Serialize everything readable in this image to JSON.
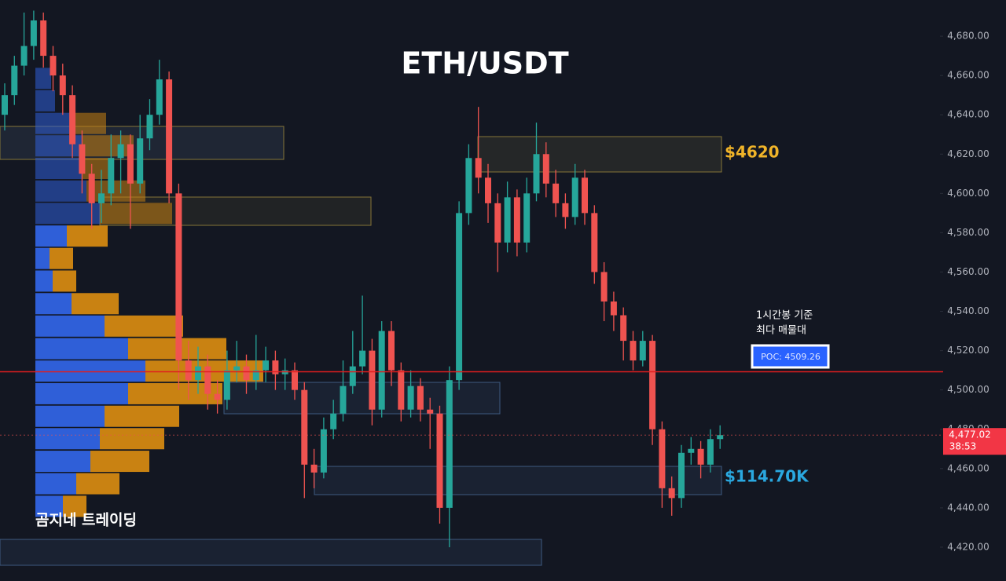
{
  "chart_data": {
    "type": "candlestick",
    "title": "ETH/USDT",
    "ylim": [
      4402.8,
      4698.4
    ],
    "yticks": [
      {
        "value": 4420,
        "label": "4,420.00"
      },
      {
        "value": 4440,
        "label": "4,440.00"
      },
      {
        "value": 4460,
        "label": "4,460.00"
      },
      {
        "value": 4480,
        "label": "4,480.00"
      },
      {
        "value": 4500,
        "label": "4,500.00"
      },
      {
        "value": 4520,
        "label": "4,520.00"
      },
      {
        "value": 4540,
        "label": "4,540.00"
      },
      {
        "value": 4560,
        "label": "4,560.00"
      },
      {
        "value": 4580,
        "label": "4,580.00"
      },
      {
        "value": 4600,
        "label": "4,600.00"
      },
      {
        "value": 4620,
        "label": "4,620.00"
      },
      {
        "value": 4640,
        "label": "4,640.00"
      },
      {
        "value": 4660,
        "label": "4,660.00"
      },
      {
        "value": 4680,
        "label": "4,680.00"
      }
    ],
    "grid": false,
    "up_color": "#26a69a",
    "down_color": "#ef5350",
    "open": [
      4640,
      4650,
      4665,
      4675,
      4688,
      4670,
      4660,
      4650,
      4625,
      4610,
      4595,
      4600,
      4618,
      4625,
      4605,
      4628,
      4640,
      4658,
      4600,
      4515,
      4505,
      4512,
      4498,
      4495,
      4510,
      4512,
      4505,
      4510,
      4515,
      4508,
      4510,
      4500,
      4462,
      4458,
      4480,
      4488,
      4502,
      4512,
      4520,
      4490,
      4530,
      4510,
      4490,
      4502,
      4490,
      4488,
      4440,
      4505,
      4590,
      4618,
      4608,
      4595,
      4575,
      4598,
      4575,
      4600,
      4620,
      4605,
      4595,
      4588,
      4608,
      4590,
      4560,
      4545,
      4538,
      4525,
      4515,
      4525,
      4480,
      4450,
      4445,
      4468,
      4470,
      4462,
      4475
    ],
    "high": [
      4656,
      4670,
      4692,
      4693,
      4692,
      4675,
      4666,
      4655,
      4632,
      4615,
      4612,
      4630,
      4632,
      4630,
      4640,
      4648,
      4668,
      4662,
      4605,
      4525,
      4522,
      4518,
      4505,
      4520,
      4525,
      4518,
      4528,
      4522,
      4520,
      4516,
      4514,
      4504,
      4470,
      4486,
      4495,
      4515,
      4530,
      4548,
      4526,
      4535,
      4535,
      4514,
      4510,
      4506,
      4496,
      4492,
      4512,
      4596,
      4625,
      4644,
      4615,
      4600,
      4606,
      4602,
      4608,
      4636,
      4626,
      4612,
      4600,
      4615,
      4612,
      4594,
      4565,
      4550,
      4542,
      4530,
      4530,
      4528,
      4484,
      4456,
      4472,
      4476,
      4474,
      4480,
      4482
    ],
    "low": [
      4632,
      4645,
      4660,
      4668,
      4664,
      4652,
      4640,
      4618,
      4600,
      4582,
      4585,
      4594,
      4600,
      4582,
      4600,
      4622,
      4635,
      4595,
      4500,
      4495,
      4498,
      4490,
      4488,
      4490,
      4504,
      4498,
      4500,
      4504,
      4500,
      4500,
      4495,
      4445,
      4450,
      4455,
      4475,
      4484,
      4498,
      4508,
      4482,
      4486,
      4502,
      4484,
      4486,
      4484,
      4470,
      4432,
      4420,
      4500,
      4584,
      4600,
      4585,
      4560,
      4570,
      4568,
      4570,
      4596,
      4598,
      4588,
      4582,
      4584,
      4584,
      4554,
      4535,
      4530,
      4515,
      4510,
      4512,
      4472,
      4440,
      4436,
      4440,
      4462,
      4455,
      4458,
      4470
    ],
    "close": [
      4650,
      4665,
      4675,
      4688,
      4670,
      4660,
      4650,
      4625,
      4610,
      4595,
      4600,
      4618,
      4625,
      4605,
      4628,
      4640,
      4658,
      4600,
      4515,
      4505,
      4512,
      4498,
      4495,
      4510,
      4512,
      4505,
      4510,
      4515,
      4508,
      4510,
      4500,
      4462,
      4458,
      4480,
      4488,
      4502,
      4512,
      4520,
      4490,
      4530,
      4510,
      4490,
      4502,
      4490,
      4488,
      4440,
      4505,
      4590,
      4618,
      4608,
      4595,
      4575,
      4598,
      4575,
      4600,
      4620,
      4605,
      4595,
      4588,
      4608,
      4590,
      4560,
      4545,
      4538,
      4525,
      4515,
      4525,
      4480,
      4450,
      4445,
      4468,
      4470,
      4462,
      4475,
      4477.02
    ],
    "profile": {
      "levels": [
        4440.8,
        4452.3,
        4463.7,
        4475.2,
        4486.6,
        4498.1,
        4509.6,
        4521.0,
        4532.5,
        4543.9,
        4555.4,
        4566.9,
        4578.3,
        4589.8,
        4601.2,
        4612.7,
        4624.2,
        4635.6,
        4647.1,
        4658.5
      ],
      "buy": [
        35,
        52,
        70,
        82,
        88,
        118,
        140,
        118,
        88,
        46,
        22,
        18,
        40,
        82,
        65,
        60,
        60,
        50,
        25,
        20
      ],
      "sell": [
        30,
        55,
        75,
        82,
        95,
        120,
        150,
        125,
        100,
        60,
        30,
        30,
        52,
        92,
        75,
        40,
        65,
        40,
        0,
        0
      ],
      "buy_color": "#2f5fd8",
      "sell_color": "#c98212"
    },
    "poc": {
      "value": 4509.26,
      "label": "POC: 4509.26",
      "color": "#e01e1e"
    },
    "poc_note": [
      "1시간봉 기준",
      "최다 매물대"
    ],
    "last_price": {
      "value": 4477.02,
      "label": "4,477.02",
      "countdown": "38:53"
    },
    "annotations": [
      "$4620",
      "$114.70K",
      "곰지네 트레이딩"
    ]
  }
}
